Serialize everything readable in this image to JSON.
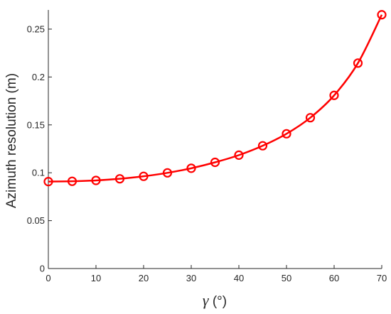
{
  "chart_data": {
    "type": "line",
    "x": [
      0,
      5,
      10,
      15,
      20,
      25,
      30,
      35,
      40,
      45,
      50,
      55,
      60,
      65,
      70
    ],
    "series": [
      {
        "values": [
          0.0908,
          0.0911,
          0.092,
          0.0937,
          0.0963,
          0.0999,
          0.1047,
          0.1109,
          0.1184,
          0.1282,
          0.1407,
          0.1575,
          0.1808,
          0.2145,
          0.265
        ],
        "color": "#ff0000",
        "marker": "circle-open"
      }
    ],
    "xlabel_symbol": "γ",
    "xlabel_unit": " (°)",
    "ylabel": "Azimuth resolution (m)",
    "xlim": [
      0,
      70
    ],
    "ylim": [
      0,
      0.27
    ],
    "xticks": [
      "0",
      "10",
      "20",
      "30",
      "40",
      "50",
      "60",
      "70"
    ],
    "yticks": [
      "0",
      "0.05",
      "0.1",
      "0.15",
      "0.2",
      "0.25"
    ],
    "grid": false,
    "axis_color": "#262626"
  }
}
